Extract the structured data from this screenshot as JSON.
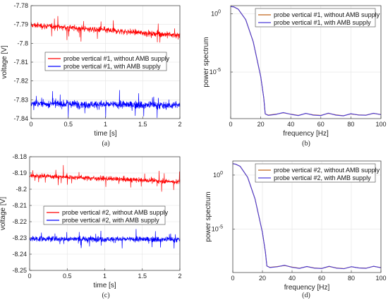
{
  "chart_data": [
    {
      "id": "a",
      "type": "line",
      "panel_label": "(a)",
      "xlabel": "time [s]",
      "ylabel": "voltage [V]",
      "xlim": [
        0,
        2
      ],
      "ylim": [
        -7.84,
        -7.78
      ],
      "xticks": [
        0,
        0.5,
        1,
        1.5,
        2
      ],
      "xtick_labels": [
        "0",
        "0.5",
        "1",
        "1.5",
        "2"
      ],
      "yticks": [
        -7.84,
        -7.83,
        -7.82,
        -7.81,
        -7.8,
        -7.79,
        -7.78
      ],
      "ytick_labels": [
        "-7.84",
        "-7.83",
        "-7.82",
        "-7.81",
        "-7.8",
        "-7.79",
        "-7.78"
      ],
      "grid": true,
      "legend_position": "center-right",
      "series": [
        {
          "name": "probe vertical #1, without AMB supply",
          "color": "#ff0000",
          "x": [
            0,
            2
          ],
          "y": [
            -7.7903,
            -7.7958
          ],
          "noise": 0.0012
        },
        {
          "name": "probe vertical #1, with AMB supply",
          "color": "#0000ff",
          "x": [
            0,
            2
          ],
          "y": [
            -7.832,
            -7.833
          ],
          "noise": 0.0016
        }
      ]
    },
    {
      "id": "b",
      "type": "line",
      "panel_label": "(b)",
      "xlabel": "frequency [Hz]",
      "ylabel": "power spectrum",
      "xlim": [
        0,
        100
      ],
      "yscale": "log",
      "ylim_exp": [
        -9,
        0.7
      ],
      "xticks": [
        0,
        20,
        40,
        60,
        80,
        100
      ],
      "xtick_labels": [
        "0",
        "20",
        "40",
        "60",
        "80",
        "100"
      ],
      "yticks_exp": [
        0,
        -5
      ],
      "ytick_labels": [
        "10",
        "10"
      ],
      "ytick_sup": [
        "0",
        "-5"
      ],
      "grid": true,
      "legend_position": "top-right",
      "series": [
        {
          "name": "probe vertical #1, without AMB supply",
          "color": "#c0651a",
          "x": [
            0,
            2,
            5,
            10,
            15,
            20,
            22,
            23,
            25,
            30,
            35,
            40,
            45,
            50,
            55,
            60,
            65,
            70,
            75,
            80,
            85,
            90,
            95,
            100
          ],
          "y": [
            0.62,
            0.6,
            0.4,
            -0.5,
            -2.4,
            -5.4,
            -7.2,
            -8.6,
            -8.7,
            -8.62,
            -8.5,
            -8.62,
            -8.72,
            -8.56,
            -8.68,
            -8.72,
            -8.55,
            -8.68,
            -8.75,
            -8.6,
            -8.68,
            -8.7,
            -8.55,
            -8.65
          ]
        },
        {
          "name": "probe vertical #1, with AMB supply",
          "color": "#4a3bd6",
          "x": [
            0,
            2,
            5,
            10,
            15,
            20,
            22,
            23,
            25,
            30,
            35,
            40,
            45,
            50,
            55,
            60,
            65,
            70,
            75,
            80,
            85,
            90,
            95,
            100
          ],
          "y": [
            0.62,
            0.6,
            0.4,
            -0.5,
            -2.4,
            -5.4,
            -7.2,
            -8.6,
            -8.72,
            -8.64,
            -8.48,
            -8.63,
            -8.74,
            -8.55,
            -8.7,
            -8.74,
            -8.53,
            -8.7,
            -8.76,
            -8.58,
            -8.69,
            -8.71,
            -8.54,
            -8.66
          ]
        }
      ]
    },
    {
      "id": "c",
      "type": "line",
      "panel_label": "(c)",
      "xlabel": "time [s]",
      "ylabel": "voltage [V]",
      "xlim": [
        0,
        2
      ],
      "ylim": [
        -8.25,
        -8.18
      ],
      "xticks": [
        0,
        0.5,
        1,
        1.5,
        2
      ],
      "xtick_labels": [
        "0",
        "0.5",
        "1",
        "1.5",
        "2"
      ],
      "yticks": [
        -8.25,
        -8.24,
        -8.23,
        -8.22,
        -8.21,
        -8.2,
        -8.19,
        -8.18
      ],
      "ytick_labels": [
        "-8.25",
        "-8.24",
        "-8.23",
        "-8.22",
        "-8.21",
        "-8.2",
        "-8.19",
        "-8.18"
      ],
      "grid": true,
      "legend_position": "center-right",
      "series": [
        {
          "name": "probe vertical #2, without AMB supply",
          "color": "#ff0000",
          "x": [
            0,
            2
          ],
          "y": [
            -8.1915,
            -8.1955
          ],
          "noise": 0.0011
        },
        {
          "name": "probe vertical #2, with AMB supply",
          "color": "#0000ff",
          "x": [
            0,
            2
          ],
          "y": [
            -8.2305,
            -8.231
          ],
          "noise": 0.0013
        }
      ]
    },
    {
      "id": "d",
      "type": "line",
      "panel_label": "(d)",
      "xlabel": "frequency [Hz]",
      "ylabel": "power spectrum",
      "xlim": [
        0,
        100
      ],
      "yscale": "log",
      "ylim_exp": [
        -9,
        1.3
      ],
      "xticks": [
        0,
        20,
        40,
        60,
        80,
        100
      ],
      "xtick_labels": [
        "0",
        "20",
        "40",
        "60",
        "80",
        "100"
      ],
      "yticks_exp": [
        0,
        -5
      ],
      "ytick_labels": [
        "10",
        "10"
      ],
      "ytick_sup": [
        "0",
        "-5"
      ],
      "grid": true,
      "legend_position": "top-right",
      "series": [
        {
          "name": "probe vertical #2, without AMB supply",
          "color": "#c0651a",
          "x": [
            0,
            2,
            5,
            10,
            15,
            20,
            22,
            23,
            25,
            30,
            35,
            40,
            45,
            50,
            55,
            60,
            65,
            70,
            75,
            80,
            85,
            90,
            95,
            100
          ],
          "y": [
            1.05,
            1.0,
            0.8,
            -0.2,
            -2.2,
            -5.3,
            -7.1,
            -8.4,
            -8.52,
            -8.45,
            -8.35,
            -8.5,
            -8.6,
            -8.45,
            -8.58,
            -8.62,
            -8.44,
            -8.58,
            -8.64,
            -8.47,
            -8.57,
            -8.6,
            -8.43,
            -8.55
          ]
        },
        {
          "name": "probe vertical #2, with AMB supply",
          "color": "#4a3bd6",
          "x": [
            0,
            2,
            5,
            10,
            15,
            20,
            22,
            23,
            25,
            30,
            35,
            40,
            45,
            50,
            55,
            60,
            65,
            70,
            75,
            80,
            85,
            90,
            95,
            100
          ],
          "y": [
            1.05,
            1.0,
            0.8,
            -0.2,
            -2.2,
            -5.3,
            -7.1,
            -8.4,
            -8.54,
            -8.47,
            -8.33,
            -8.52,
            -8.62,
            -8.44,
            -8.6,
            -8.63,
            -8.42,
            -8.6,
            -8.65,
            -8.46,
            -8.58,
            -8.61,
            -8.42,
            -8.56
          ]
        }
      ]
    }
  ]
}
